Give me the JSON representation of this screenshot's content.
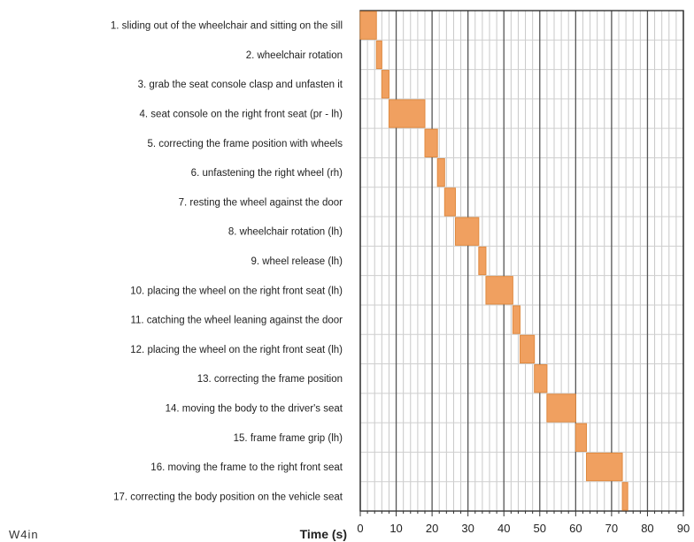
{
  "chart_data": {
    "type": "bar",
    "orientation": "horizontal",
    "subtype": "gantt",
    "title": "",
    "xlabel": "Time (s)",
    "ylabel": "",
    "corner_label": "W4in",
    "xlim": [
      0,
      90
    ],
    "xticks": [
      0,
      10,
      20,
      30,
      40,
      50,
      60,
      70,
      80,
      90
    ],
    "grid": true,
    "legend": "none",
    "bar_color": "#f0a060",
    "bar_border_color": "#e08a40",
    "tasks": [
      {
        "label": "1. sliding out of the wheelchair and sitting on the sill",
        "start": 0,
        "end": 4.5
      },
      {
        "label": "2. wheelchair rotation",
        "start": 4.5,
        "end": 6
      },
      {
        "label": "3. grab the seat console clasp and unfasten it",
        "start": 6,
        "end": 8
      },
      {
        "label": "4. seat console on the right front seat (pr - lh)",
        "start": 8,
        "end": 18
      },
      {
        "label": "5. correcting the frame position with wheels",
        "start": 18,
        "end": 21.5
      },
      {
        "label": "6. unfastening the right wheel (rh)",
        "start": 21.5,
        "end": 23.5
      },
      {
        "label": "7. resting the wheel against the door",
        "start": 23.5,
        "end": 26.5
      },
      {
        "label": "8. wheelchair rotation (lh)",
        "start": 26.5,
        "end": 33
      },
      {
        "label": "9. wheel release (lh)",
        "start": 33,
        "end": 35
      },
      {
        "label": "10. placing the wheel on the right front seat (lh)",
        "start": 35,
        "end": 42.5
      },
      {
        "label": "11. catching the wheel leaning against the door",
        "start": 42.5,
        "end": 44.5
      },
      {
        "label": "12. placing the wheel on the right front seat (lh)",
        "start": 44.5,
        "end": 48.5
      },
      {
        "label": "13. correcting the frame position",
        "start": 48.5,
        "end": 52
      },
      {
        "label": "14. moving the body to the driver's seat",
        "start": 52,
        "end": 60
      },
      {
        "label": "15. frame frame grip (lh)",
        "start": 60,
        "end": 63
      },
      {
        "label": "16. moving the frame to the right front seat",
        "start": 63,
        "end": 73
      },
      {
        "label": "17. correcting the body position on the vehicle seat",
        "start": 73,
        "end": 74.5
      }
    ]
  }
}
